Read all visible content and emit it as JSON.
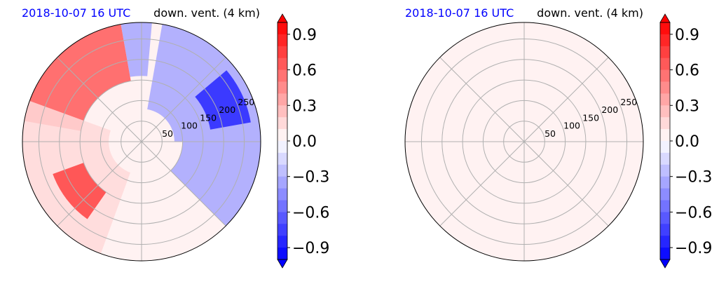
{
  "chart_data": [
    {
      "type": "polar-filled-contour",
      "title_left": "2018-10-07 16 UTC",
      "title_right": "down. vent. (4 km)",
      "radial_ticks": [
        "50",
        "100",
        "150",
        "200",
        "250"
      ],
      "radial_values": [
        50,
        100,
        150,
        200,
        250
      ],
      "rmax": 290,
      "angular_gridlines_deg": [
        0,
        45,
        90,
        135,
        180,
        225,
        270,
        315
      ],
      "colorbar": {
        "ticks": [
          "0.9",
          "0.6",
          "0.3",
          "0.0",
          "−0.3",
          "−0.6",
          "−0.9"
        ],
        "tick_values": [
          0.9,
          0.6,
          0.3,
          0.0,
          -0.3,
          -0.6,
          -0.9
        ],
        "range": [
          -1.0,
          1.0
        ],
        "levels": 20,
        "colormap": "bwr",
        "extend": "both"
      },
      "field": {
        "background_value": 0.05,
        "features": [
          {
            "sector_deg": [
              100,
              170
            ],
            "r_range": [
              150,
              290
            ],
            "value": 0.6
          },
          {
            "sector_deg": [
              160,
              250
            ],
            "r_range": [
              80,
              290
            ],
            "value": 0.2
          },
          {
            "sector_deg": [
              200,
              235
            ],
            "r_range": [
              150,
              230
            ],
            "value": 0.7
          },
          {
            "sector_deg": [
              0,
              80
            ],
            "r_range": [
              80,
              290
            ],
            "value": -0.35
          },
          {
            "sector_deg": [
              10,
              40
            ],
            "r_range": [
              170,
              270
            ],
            "value": -0.85
          },
          {
            "sector_deg": [
              -45,
              0
            ],
            "r_range": [
              100,
              290
            ],
            "value": -0.3
          },
          {
            "sector_deg": [
              85,
              100
            ],
            "r_range": [
              160,
              290
            ],
            "value": -0.3
          }
        ]
      }
    },
    {
      "type": "polar-filled-contour",
      "title_left": "2018-10-07 16 UTC",
      "title_right": "down. vent. (4 km)",
      "radial_ticks": [
        "50",
        "100",
        "150",
        "200",
        "250"
      ],
      "radial_values": [
        50,
        100,
        150,
        200,
        250
      ],
      "rmax": 290,
      "angular_gridlines_deg": [
        0,
        45,
        90,
        135,
        180,
        225,
        270,
        315
      ],
      "colorbar": {
        "ticks": [
          "0.9",
          "0.6",
          "0.3",
          "0.0",
          "−0.3",
          "−0.6",
          "−0.9"
        ],
        "tick_values": [
          0.9,
          0.6,
          0.3,
          0.0,
          -0.3,
          -0.6,
          -0.9
        ],
        "range": [
          -1.0,
          1.0
        ],
        "levels": 20,
        "colormap": "bwr",
        "extend": "both"
      },
      "field": {
        "background_value": 0.05,
        "features": []
      }
    }
  ],
  "colors": {
    "title_left": "#0000ff",
    "title_right": "#000000",
    "grid": "#b0b0b0"
  }
}
